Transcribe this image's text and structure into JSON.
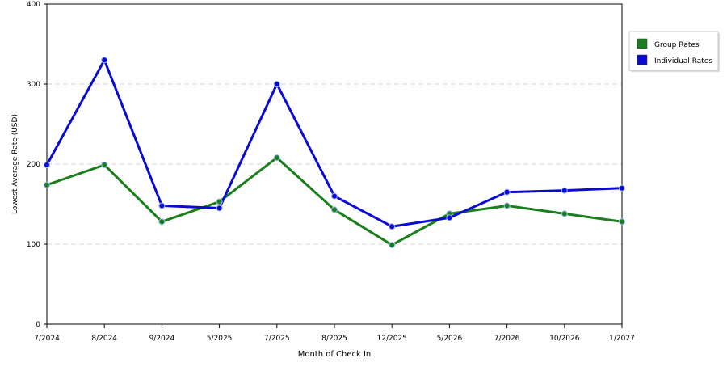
{
  "chart_data": {
    "type": "line",
    "title": "",
    "xlabel": "Month of Check In",
    "ylabel": "Lowest Average Rate (USD)",
    "categories": [
      "7/2024",
      "8/2024",
      "9/2024",
      "5/2025",
      "7/2025",
      "8/2025",
      "12/2025",
      "5/2026",
      "7/2026",
      "10/2026",
      "1/2027"
    ],
    "ylim": [
      0,
      400
    ],
    "yticks": [
      0,
      100,
      200,
      300,
      400
    ],
    "grid": "horizontal dashed",
    "legend": "top-right",
    "series": [
      {
        "name": "Group Rates",
        "color": "#1a7f1a",
        "values": [
          174,
          199,
          128,
          153,
          208,
          143,
          99,
          138,
          148,
          138,
          128
        ]
      },
      {
        "name": "Individual Rates",
        "color": "#0a0ad2",
        "values": [
          199,
          330,
          148,
          145,
          300,
          160,
          122,
          133,
          165,
          167,
          170
        ]
      }
    ]
  }
}
